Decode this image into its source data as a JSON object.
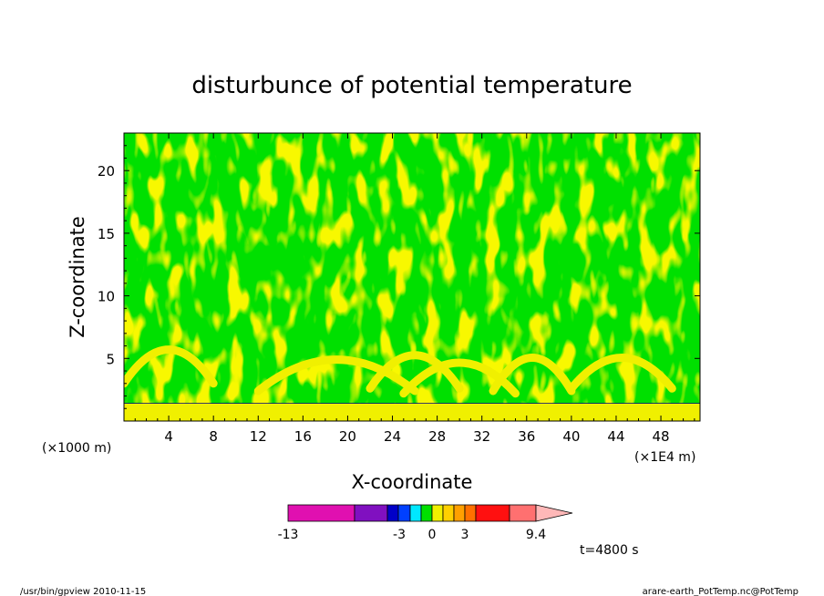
{
  "figure": {
    "title": "disturbunce of potential temperature",
    "time_label": "t=4800 s",
    "footer_left": "/usr/bin/gpview  2010-11-15",
    "footer_right": "arare-earth_PotTemp.nc@PotTemp"
  },
  "chart_data": {
    "type": "heatmap",
    "title": "disturbunce of potential temperature",
    "xlabel": "X-coordinate",
    "ylabel": "Z-coordinate",
    "x_unit_label": "(×1E4 m)",
    "y_unit_label": "(×1000 m)",
    "xlim": [
      0,
      51.5
    ],
    "ylim": [
      0,
      23
    ],
    "x_ticks": [
      4,
      8,
      12,
      16,
      20,
      24,
      28,
      32,
      36,
      40,
      44,
      48
    ],
    "y_ticks": [
      5,
      10,
      15,
      20
    ],
    "surface_layer_top_z": 1.4,
    "colorbar": {
      "tick_labels": [
        "-13",
        "-3",
        "0",
        "3",
        "9.4"
      ],
      "tick_values": [
        -13,
        -3,
        0,
        3,
        9.4
      ],
      "colors": [
        "#e010b0",
        "#8010c0",
        "#0000c8",
        "#0040ff",
        "#00e8ff",
        "#00e000",
        "#f0f000",
        "#ffd000",
        "#ffa000",
        "#ff7000",
        "#ff1010",
        "#ff7070",
        "#ffb8b8"
      ]
    },
    "dominant_fill_colors": [
      "#00e000",
      "#f0f000"
    ],
    "contour_line_color": "#000080"
  }
}
